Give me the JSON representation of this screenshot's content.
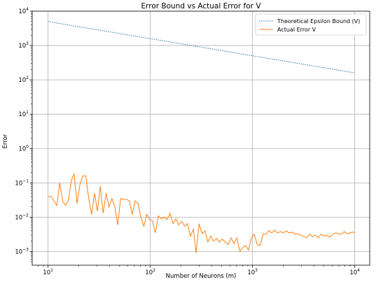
{
  "chart_data": {
    "type": "line",
    "title": "Error Bound vs Actual Error for V",
    "xlabel": "Number of Neurons (m)",
    "ylabel": "Error",
    "xscale": "log",
    "yscale": "log",
    "xlim": [
      7,
      14000
    ],
    "ylim": [
      0.0004,
      10000
    ],
    "grid": true,
    "legend_position": "top-right",
    "x_ticks": [
      {
        "value": 10,
        "base": "10",
        "exp": "1"
      },
      {
        "value": 100,
        "base": "10",
        "exp": "2"
      },
      {
        "value": 1000,
        "base": "10",
        "exp": "3"
      },
      {
        "value": 10000,
        "base": "10",
        "exp": "4"
      }
    ],
    "y_ticks": [
      {
        "value": 0.001,
        "base": "10",
        "exp": "−3"
      },
      {
        "value": 0.01,
        "base": "10",
        "exp": "−2"
      },
      {
        "value": 0.1,
        "base": "10",
        "exp": "−1"
      },
      {
        "value": 1,
        "base": "10",
        "exp": "0"
      },
      {
        "value": 10,
        "base": "10",
        "exp": "1"
      },
      {
        "value": 100,
        "base": "10",
        "exp": "2"
      },
      {
        "value": 1000,
        "base": "10",
        "exp": "3"
      },
      {
        "value": 10000,
        "base": "10",
        "exp": "4"
      }
    ],
    "series": [
      {
        "name": "Theoretical Epsilon Bound (V)",
        "color": "#1f77b4",
        "style": "dotted",
        "x": [
          10,
          10000
        ],
        "y": [
          5000,
          160
        ]
      },
      {
        "name": "Actual Error V",
        "color": "#ff7f0e",
        "style": "solid",
        "x": [
          10,
          10.7,
          11.4,
          12.2,
          13,
          13.9,
          14.8,
          15.8,
          16.9,
          18,
          19.2,
          20.5,
          21.9,
          23.4,
          25,
          26.7,
          28.5,
          30.4,
          32.4,
          34.6,
          37,
          39.5,
          42.1,
          45,
          48,
          51.3,
          54.7,
          58.4,
          62.4,
          66.6,
          71.1,
          75.9,
          81,
          86.5,
          92.4,
          98.6,
          105,
          112,
          120,
          128,
          137,
          146,
          156,
          167,
          178,
          190,
          203,
          217,
          231,
          247,
          264,
          281,
          300,
          321,
          342,
          366,
          390,
          417,
          445,
          475,
          507,
          541,
          578,
          617,
          659,
          703,
          751,
          801,
          856,
          913,
          975,
          1040,
          1110,
          1190,
          1270,
          1350,
          1440,
          1540,
          1650,
          1760,
          1880,
          2000,
          2140,
          2280,
          2440,
          2600,
          2780,
          2970,
          3170,
          3380,
          3610,
          3850,
          4110,
          4390,
          4690,
          5000,
          5340,
          5700,
          6090,
          6500,
          6940,
          7410,
          7910,
          8440,
          9010,
          9620,
          10000
        ],
        "y": [
          0.04,
          0.04,
          0.03,
          0.022,
          0.1,
          0.03,
          0.022,
          0.03,
          0.12,
          0.18,
          0.025,
          0.09,
          0.16,
          0.16,
          0.035,
          0.012,
          0.05,
          0.015,
          0.08,
          0.013,
          0.05,
          0.02,
          0.035,
          0.02,
          0.006,
          0.035,
          0.033,
          0.033,
          0.03,
          0.012,
          0.03,
          0.025,
          0.01,
          0.0055,
          0.012,
          0.0085,
          0.008,
          0.0035,
          0.011,
          0.009,
          0.01,
          0.0085,
          0.013,
          0.0065,
          0.009,
          0.006,
          0.0075,
          0.0055,
          0.0065,
          0.0028,
          0.0045,
          0.0009,
          0.0065,
          0.0033,
          0.004,
          0.0019,
          0.0028,
          0.002,
          0.0024,
          0.0019,
          0.0023,
          0.0019,
          0.0016,
          0.0025,
          0.0017,
          0.0025,
          0.001,
          0.0013,
          0.0015,
          0.0011,
          0.0025,
          0.0032,
          0.0016,
          0.0015,
          0.0033,
          0.0032,
          0.004,
          0.0035,
          0.0042,
          0.0035,
          0.0038,
          0.0035,
          0.004,
          0.0035,
          0.0037,
          0.0032,
          0.0033,
          0.003,
          0.0027,
          0.0025,
          0.0032,
          0.0027,
          0.003,
          0.0025,
          0.0032,
          0.0028,
          0.003,
          0.0026,
          0.0032,
          0.0035,
          0.0033,
          0.0032,
          0.0038,
          0.0033,
          0.0035,
          0.0037,
          0.0035
        ]
      }
    ]
  }
}
